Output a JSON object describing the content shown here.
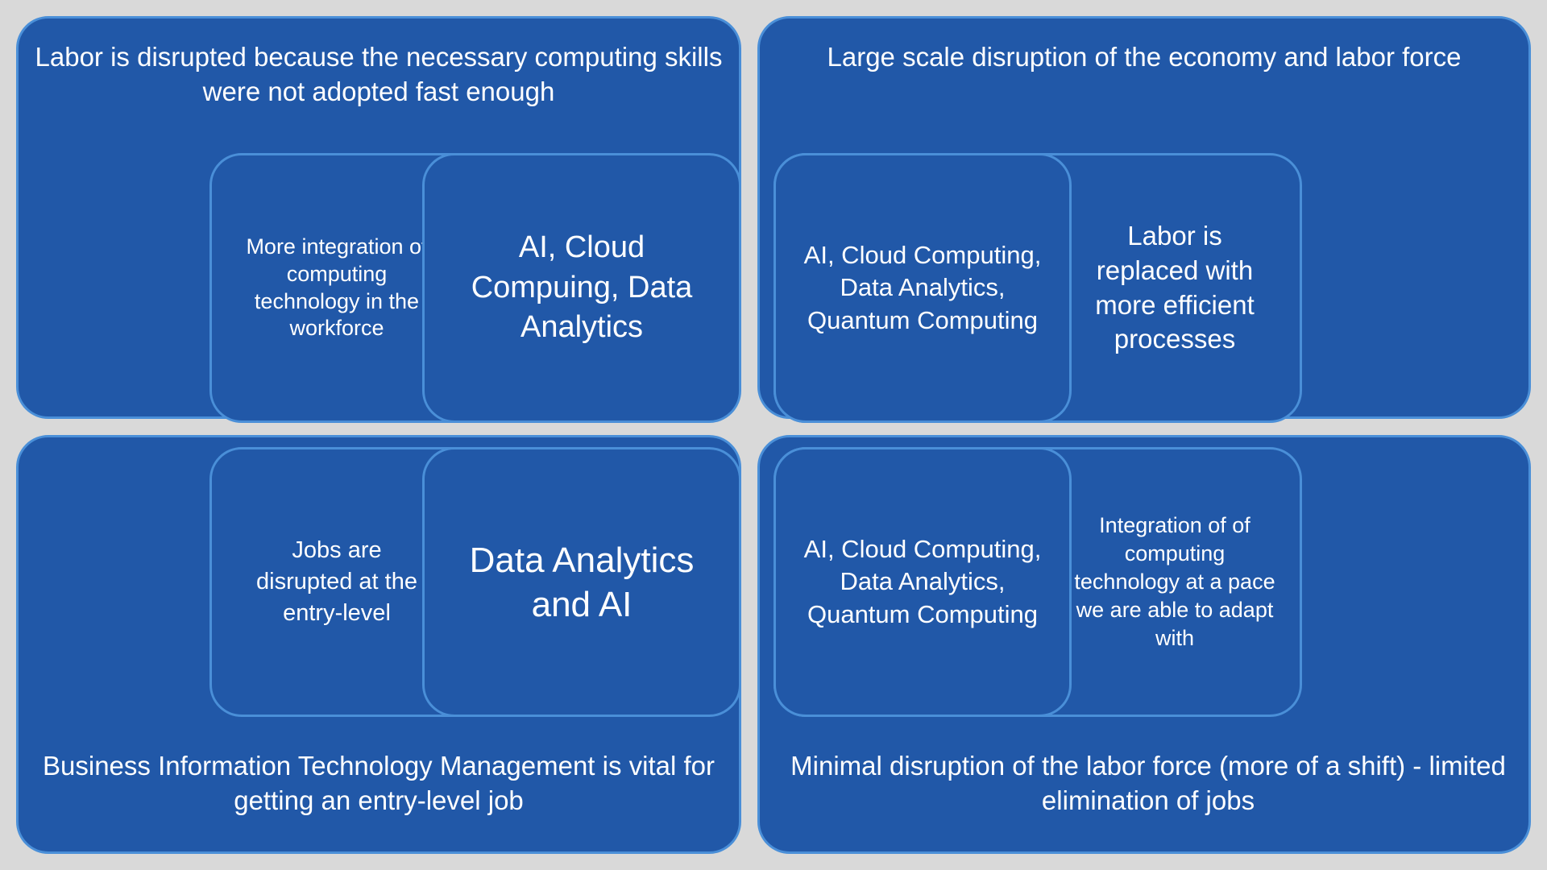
{
  "diagram": {
    "type": "quadrant-infographic",
    "background_color": "#d9d9d9",
    "box_fill": "#2158a8",
    "box_border": "#4a8fd8",
    "text_color": "#ffffff",
    "border_radius": 40,
    "border_width": 3,
    "quadrants": {
      "top_left": {
        "title": "Labor is disrupted because the necessary computing skills were not adopted fast enough",
        "title_fontsize": 33,
        "inner_left": "More integration of computing technology in the workforce",
        "inner_left_fontsize": 27,
        "inner_right": "AI, Cloud Compuing, Data Analytics",
        "inner_right_fontsize": 38
      },
      "top_right": {
        "title": "Large scale disruption of the economy and labor force",
        "title_fontsize": 33,
        "inner_left": "AI, Cloud Computing, Data Analytics, Quantum Computing",
        "inner_left_fontsize": 31,
        "inner_right": "Labor is replaced with more efficient processes",
        "inner_right_fontsize": 33
      },
      "bottom_left": {
        "title": "Business Information Technology Management is vital for getting an entry-level job",
        "title_fontsize": 33,
        "inner_left": "Jobs are disrupted at the entry-level",
        "inner_left_fontsize": 29,
        "inner_right": "Data Analytics and AI",
        "inner_right_fontsize": 44
      },
      "bottom_right": {
        "title": "Minimal disruption of the labor force (more of a shift) - limited elimination of jobs",
        "title_fontsize": 33,
        "inner_left": "AI, Cloud Computing, Data Analytics, Quantum Computing",
        "inner_left_fontsize": 31,
        "inner_right": "Integration of of computing technology at a pace we are able to adapt with",
        "inner_right_fontsize": 27
      }
    }
  }
}
